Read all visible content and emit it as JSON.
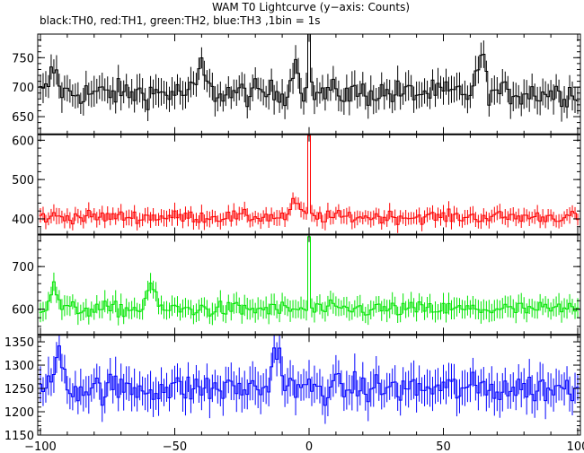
{
  "chart_data": {
    "type": "line",
    "title": "WAM T0 Lightcurve (y−axis: Counts)",
    "subtitle": "black:TH0, red:TH1, green:TH2, blue:TH3 ,1bin = 1s",
    "x_range": [
      -101,
      101
    ],
    "x_ticks": [
      -100,
      -50,
      0,
      50,
      100
    ],
    "x_tick_labels": [
      "−100",
      "−50",
      "0",
      "50",
      "100"
    ],
    "bin_seconds": 1,
    "panels": [
      {
        "name": "TH0",
        "color": "#000000",
        "ylim": [
          620,
          790
        ],
        "y_ticks": [
          650,
          700,
          750
        ],
        "baseline": 690,
        "peak": 790,
        "noise_amp": 22,
        "err_bar": 22,
        "features": [
          {
            "x": -95,
            "value": 730
          },
          {
            "x": -40,
            "value": 735
          },
          {
            "x": -5,
            "value": 740
          },
          {
            "x": 64,
            "value": 752
          }
        ]
      },
      {
        "name": "TH1",
        "color": "#ff0000",
        "ylim": [
          360,
          615
        ],
        "y_ticks": [
          400,
          500,
          600
        ],
        "baseline": 405,
        "peak": 612,
        "noise_amp": 16,
        "err_bar": 18,
        "features": [
          {
            "x": -5,
            "value": 445
          }
        ]
      },
      {
        "name": "TH2",
        "color": "#00e600",
        "ylim": [
          540,
          775
        ],
        "y_ticks": [
          600,
          700
        ],
        "baseline": 600,
        "peak": 770,
        "noise_amp": 18,
        "err_bar": 22,
        "features": [
          {
            "x": -59,
            "value": 660
          },
          {
            "x": -95,
            "value": 650
          }
        ]
      },
      {
        "name": "TH3",
        "color": "#0000ff",
        "ylim": [
          1150,
          1365
        ],
        "y_ticks": [
          1150,
          1200,
          1250,
          1300,
          1350
        ],
        "baseline": 1250,
        "peak": null,
        "noise_amp": 32,
        "err_bar": 35,
        "features": [
          {
            "x": -93,
            "value": 1340
          },
          {
            "x": -12,
            "value": 1345
          }
        ]
      }
    ]
  }
}
